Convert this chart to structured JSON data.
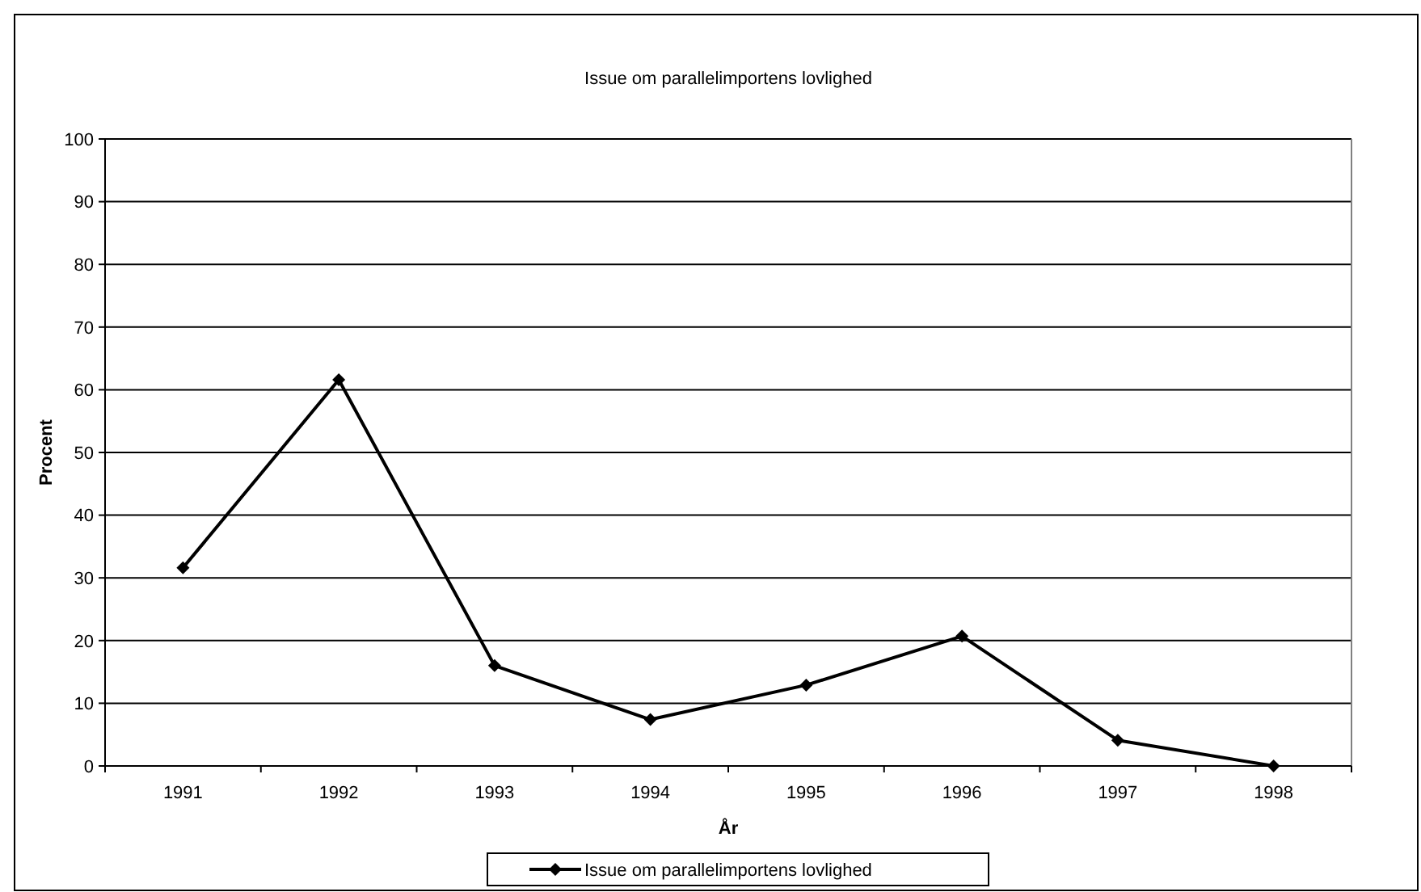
{
  "chart_data": {
    "type": "line",
    "title": "Issue om parallelimportens lovlighed",
    "xlabel": "År",
    "ylabel": "Procent",
    "categories": [
      "1991",
      "1992",
      "1993",
      "1994",
      "1995",
      "1996",
      "1997",
      "1998"
    ],
    "series": [
      {
        "name": "Issue om parallelimportens lovlighed",
        "color": "#000000",
        "values": [
          31.6,
          61.6,
          16.0,
          7.4,
          12.9,
          20.7,
          4.1,
          0
        ]
      }
    ],
    "ylim": [
      0,
      100
    ],
    "yticks": [
      0,
      10,
      20,
      30,
      40,
      50,
      60,
      70,
      80,
      90,
      100
    ],
    "grid": "y",
    "legend": "bottom",
    "marker": "diamond",
    "line_style": "solid"
  }
}
